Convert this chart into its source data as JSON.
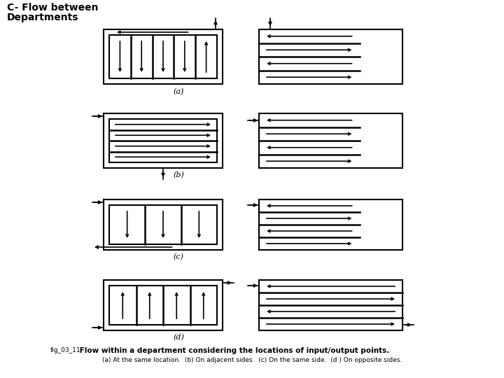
{
  "title_line1": "C- Flow between",
  "title_line2": "Departments",
  "caption_prefix": "fig_03_11",
  "caption_bold": " Flow within a department considering the locations of input/output points.",
  "caption_sub": "(a) At the same location.  (b) On adjacent sides.  (c) On the same side.  (d ) On opposite sides.",
  "bg_color": "#ffffff",
  "lw_outer": 1.5,
  "lw_inner": 1.8,
  "lw_line": 1.5,
  "lw_arrow": 1.2,
  "arrow_ms": 7
}
